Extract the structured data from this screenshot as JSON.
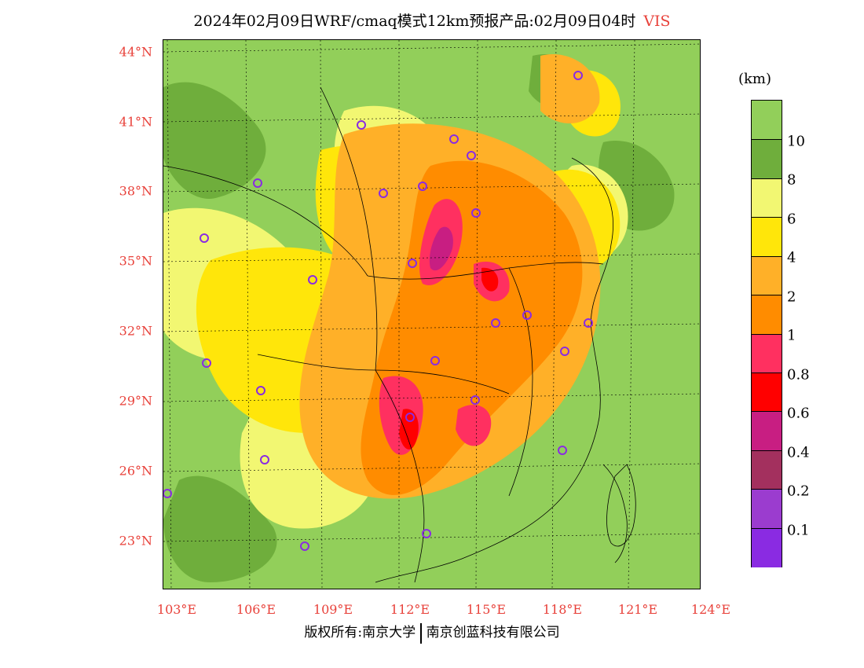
{
  "title": {
    "main": "2024年02月09日WRF/cmaq模式12km预报产品:02月09日04时",
    "variable": "VIS"
  },
  "colors": {
    "ocean": "#92cf5a",
    "land_vis_8_10": "#6fae3c",
    "land_vis_6_8": "#f2f772",
    "land_vis_4_6": "#ffe60a",
    "land_vis_2_4": "#ffb028",
    "land_vis_1_2": "#ff8c00",
    "land_vis_0_8_1": "#ff3060",
    "land_vis_0_6_0_8": "#ff0000",
    "land_vis_0_4_0_6": "#c81e82",
    "accent_label": "#e8413a",
    "station_marker": "#8a2be2"
  },
  "axes": {
    "lat_ticks": [
      "44°N",
      "41°N",
      "38°N",
      "35°N",
      "32°N",
      "29°N",
      "26°N",
      "23°N"
    ],
    "lon_ticks": [
      "103°E",
      "106°E",
      "109°E",
      "112°E",
      "115°E",
      "118°E",
      "121°E",
      "124°E"
    ]
  },
  "legend": {
    "unit": "(km)",
    "swatches": [
      {
        "color": "#92cf5a"
      },
      {
        "color": "#6fae3c"
      },
      {
        "color": "#f2f772"
      },
      {
        "color": "#ffe60a"
      },
      {
        "color": "#ffb028"
      },
      {
        "color": "#ff8c00"
      },
      {
        "color": "#ff3060"
      },
      {
        "color": "#ff0000"
      },
      {
        "color": "#c81e82"
      },
      {
        "color": "#a3305e"
      },
      {
        "color": "#9b3ccf"
      },
      {
        "color": "#8a2be2"
      }
    ],
    "labels": [
      "10",
      "8",
      "6",
      "4",
      "2",
      "1",
      "0.8",
      "0.6",
      "0.4",
      "0.2",
      "0.1"
    ]
  },
  "footer": {
    "left": "版权所有:南京大学",
    "right": "南京创蓝科技有限公司"
  }
}
